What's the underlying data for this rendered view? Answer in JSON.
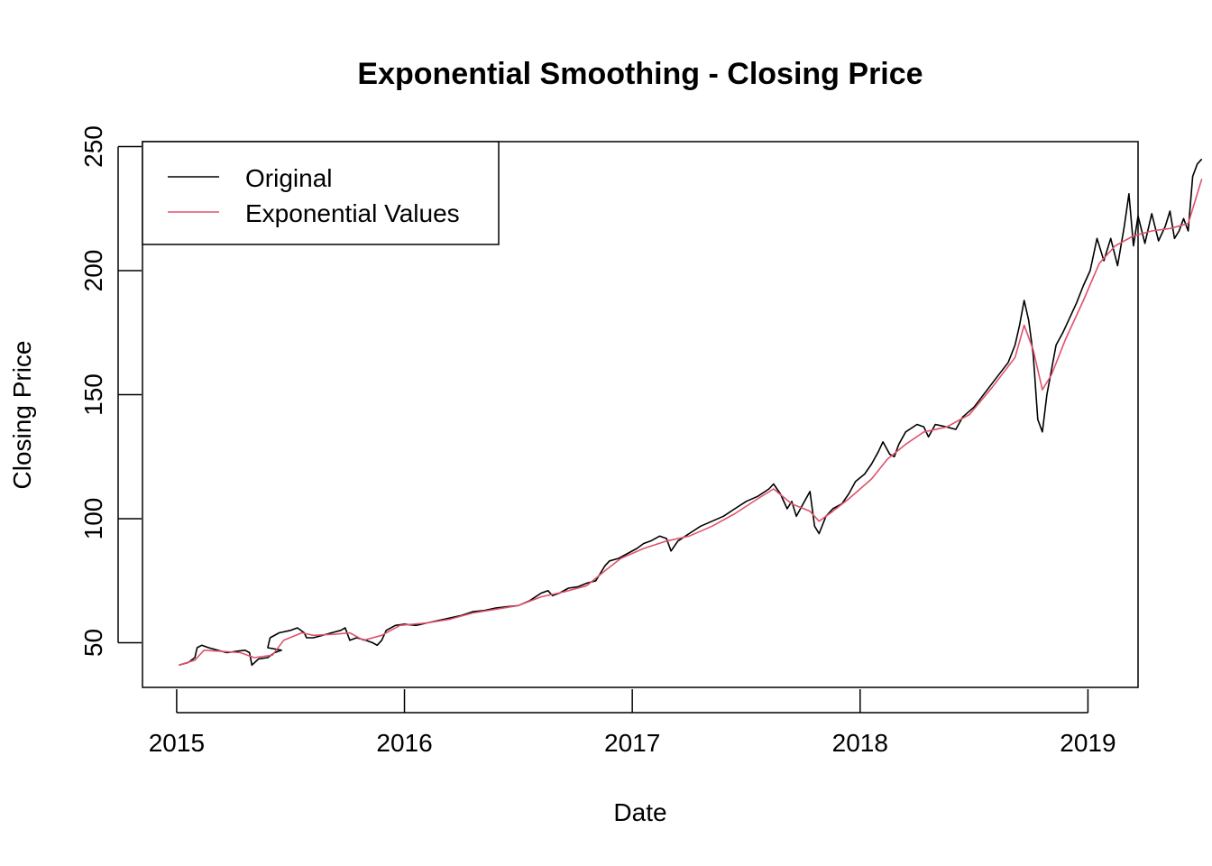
{
  "chart_data": {
    "type": "line",
    "title": "Exponential Smoothing - Closing Price",
    "xlabel": "Date",
    "ylabel": "Closing Price",
    "xlim": [
      2014.85,
      2019.22
    ],
    "ylim": [
      32,
      252
    ],
    "x_ticks": [
      2015,
      2016,
      2017,
      2018,
      2019
    ],
    "x_tick_labels": [
      "2015",
      "2016",
      "2017",
      "2018",
      "2019"
    ],
    "y_ticks": [
      50,
      100,
      150,
      200,
      250
    ],
    "y_tick_labels": [
      "50",
      "100",
      "150",
      "200",
      "250"
    ],
    "grid": false,
    "legend_position": "top-left",
    "series": [
      {
        "name": "Original",
        "color": "#000000",
        "points": [
          [
            2015.01,
            41
          ],
          [
            2015.05,
            42
          ],
          [
            2015.08,
            44
          ],
          [
            2015.09,
            48
          ],
          [
            2015.11,
            49
          ],
          [
            2015.14,
            48
          ],
          [
            2015.18,
            47
          ],
          [
            2015.22,
            46
          ],
          [
            2015.26,
            46.5
          ],
          [
            2015.3,
            47
          ],
          [
            2015.32,
            46
          ],
          [
            2015.33,
            41
          ],
          [
            2015.36,
            43.5
          ],
          [
            2015.4,
            44
          ],
          [
            2015.43,
            46
          ],
          [
            2015.46,
            47
          ],
          [
            2015.4,
            48
          ],
          [
            2015.41,
            52
          ],
          [
            2015.45,
            54
          ],
          [
            2015.5,
            55
          ],
          [
            2015.53,
            56
          ],
          [
            2015.56,
            54
          ],
          [
            2015.57,
            52
          ],
          [
            2015.6,
            52
          ],
          [
            2015.64,
            53
          ],
          [
            2015.68,
            54
          ],
          [
            2015.72,
            55
          ],
          [
            2015.74,
            56
          ],
          [
            2015.76,
            51
          ],
          [
            2015.79,
            52
          ],
          [
            2015.83,
            51
          ],
          [
            2015.86,
            50
          ],
          [
            2015.88,
            49
          ],
          [
            2015.9,
            51
          ],
          [
            2015.92,
            55
          ],
          [
            2015.96,
            57
          ],
          [
            2016.0,
            57.5
          ],
          [
            2016.05,
            57
          ],
          [
            2016.1,
            58
          ],
          [
            2016.15,
            59
          ],
          [
            2016.2,
            60
          ],
          [
            2016.25,
            61
          ],
          [
            2016.3,
            62.5
          ],
          [
            2016.35,
            63
          ],
          [
            2016.4,
            64
          ],
          [
            2016.45,
            64.5
          ],
          [
            2016.5,
            65
          ],
          [
            2016.55,
            67
          ],
          [
            2016.6,
            70
          ],
          [
            2016.63,
            71
          ],
          [
            2016.65,
            69
          ],
          [
            2016.68,
            70
          ],
          [
            2016.72,
            72
          ],
          [
            2016.76,
            72.5
          ],
          [
            2016.8,
            74
          ],
          [
            2016.84,
            75
          ],
          [
            2016.86,
            78
          ],
          [
            2016.88,
            81
          ],
          [
            2016.9,
            83
          ],
          [
            2016.94,
            84
          ],
          [
            2016.98,
            86
          ],
          [
            2017.02,
            88
          ],
          [
            2017.05,
            90
          ],
          [
            2017.08,
            91
          ],
          [
            2017.12,
            93
          ],
          [
            2017.15,
            92
          ],
          [
            2017.17,
            87
          ],
          [
            2017.2,
            91
          ],
          [
            2017.25,
            94
          ],
          [
            2017.3,
            97
          ],
          [
            2017.35,
            99
          ],
          [
            2017.4,
            101
          ],
          [
            2017.45,
            104
          ],
          [
            2017.5,
            107
          ],
          [
            2017.55,
            109
          ],
          [
            2017.6,
            112
          ],
          [
            2017.62,
            114
          ],
          [
            2017.65,
            110
          ],
          [
            2017.68,
            104
          ],
          [
            2017.7,
            107
          ],
          [
            2017.72,
            101
          ],
          [
            2017.75,
            106
          ],
          [
            2017.78,
            111
          ],
          [
            2017.8,
            97
          ],
          [
            2017.82,
            94
          ],
          [
            2017.85,
            101
          ],
          [
            2017.88,
            104
          ],
          [
            2017.92,
            106
          ],
          [
            2017.95,
            110
          ],
          [
            2017.98,
            115
          ],
          [
            2018.02,
            118
          ],
          [
            2018.05,
            122
          ],
          [
            2018.08,
            127
          ],
          [
            2018.1,
            131
          ],
          [
            2018.13,
            126
          ],
          [
            2018.15,
            125
          ],
          [
            2018.17,
            130
          ],
          [
            2018.2,
            135
          ],
          [
            2018.25,
            138
          ],
          [
            2018.28,
            137
          ],
          [
            2018.3,
            133
          ],
          [
            2018.33,
            138
          ],
          [
            2018.38,
            137
          ],
          [
            2018.42,
            136
          ],
          [
            2018.45,
            141
          ],
          [
            2018.5,
            145
          ],
          [
            2018.55,
            151
          ],
          [
            2018.6,
            157
          ],
          [
            2018.65,
            163
          ],
          [
            2018.68,
            170
          ],
          [
            2018.7,
            178
          ],
          [
            2018.72,
            188
          ],
          [
            2018.74,
            180
          ],
          [
            2018.76,
            166
          ],
          [
            2018.78,
            140
          ],
          [
            2018.8,
            135
          ],
          [
            2018.82,
            150
          ],
          [
            2018.84,
            160
          ],
          [
            2018.86,
            170
          ],
          [
            2018.89,
            175
          ],
          [
            2018.92,
            181
          ],
          [
            2018.95,
            187
          ],
          [
            2018.98,
            194
          ],
          [
            2019.01,
            200
          ],
          [
            2019.04,
            213
          ],
          [
            2019.07,
            204
          ],
          [
            2019.1,
            213
          ],
          [
            2019.13,
            202
          ],
          [
            2019.16,
            218
          ],
          [
            2019.18,
            231
          ],
          [
            2019.2,
            210
          ],
          [
            2019.22,
            222
          ],
          [
            2019.25,
            211
          ],
          [
            2019.28,
            223
          ],
          [
            2019.31,
            212
          ],
          [
            2019.34,
            218
          ],
          [
            2019.36,
            224
          ],
          [
            2019.38,
            213
          ],
          [
            2019.4,
            216
          ],
          [
            2019.42,
            221
          ],
          [
            2019.44,
            216
          ],
          [
            2019.46,
            238
          ],
          [
            2019.48,
            243
          ],
          [
            2019.5,
            245
          ]
        ]
      },
      {
        "name": "Exponential Values",
        "color": "#DF536B",
        "points": [
          [
            2015.01,
            41
          ],
          [
            2015.08,
            43
          ],
          [
            2015.12,
            47
          ],
          [
            2015.2,
            46.5
          ],
          [
            2015.28,
            46
          ],
          [
            2015.34,
            44
          ],
          [
            2015.42,
            45
          ],
          [
            2015.47,
            51
          ],
          [
            2015.55,
            54
          ],
          [
            2015.6,
            53
          ],
          [
            2015.7,
            53.5
          ],
          [
            2015.76,
            54
          ],
          [
            2015.82,
            51
          ],
          [
            2015.9,
            53
          ],
          [
            2015.98,
            57
          ],
          [
            2016.1,
            58
          ],
          [
            2016.2,
            59.5
          ],
          [
            2016.3,
            62
          ],
          [
            2016.4,
            63.5
          ],
          [
            2016.5,
            65
          ],
          [
            2016.6,
            68.5
          ],
          [
            2016.7,
            70.5
          ],
          [
            2016.8,
            73
          ],
          [
            2016.88,
            79
          ],
          [
            2016.95,
            84
          ],
          [
            2017.05,
            88
          ],
          [
            2017.15,
            91
          ],
          [
            2017.25,
            93
          ],
          [
            2017.35,
            97
          ],
          [
            2017.45,
            102
          ],
          [
            2017.55,
            108
          ],
          [
            2017.62,
            112
          ],
          [
            2017.7,
            106
          ],
          [
            2017.78,
            103
          ],
          [
            2017.82,
            99
          ],
          [
            2017.88,
            103
          ],
          [
            2017.95,
            108
          ],
          [
            2018.05,
            116
          ],
          [
            2018.12,
            124
          ],
          [
            2018.2,
            130
          ],
          [
            2018.28,
            135
          ],
          [
            2018.38,
            137
          ],
          [
            2018.48,
            142
          ],
          [
            2018.58,
            153
          ],
          [
            2018.68,
            165
          ],
          [
            2018.72,
            178
          ],
          [
            2018.76,
            168
          ],
          [
            2018.8,
            152
          ],
          [
            2018.84,
            158
          ],
          [
            2018.9,
            172
          ],
          [
            2018.98,
            188
          ],
          [
            2019.05,
            203
          ],
          [
            2019.12,
            210
          ],
          [
            2019.2,
            214
          ],
          [
            2019.28,
            216
          ],
          [
            2019.36,
            217
          ],
          [
            2019.44,
            219
          ],
          [
            2019.47,
            228
          ],
          [
            2019.5,
            237
          ]
        ]
      }
    ]
  }
}
